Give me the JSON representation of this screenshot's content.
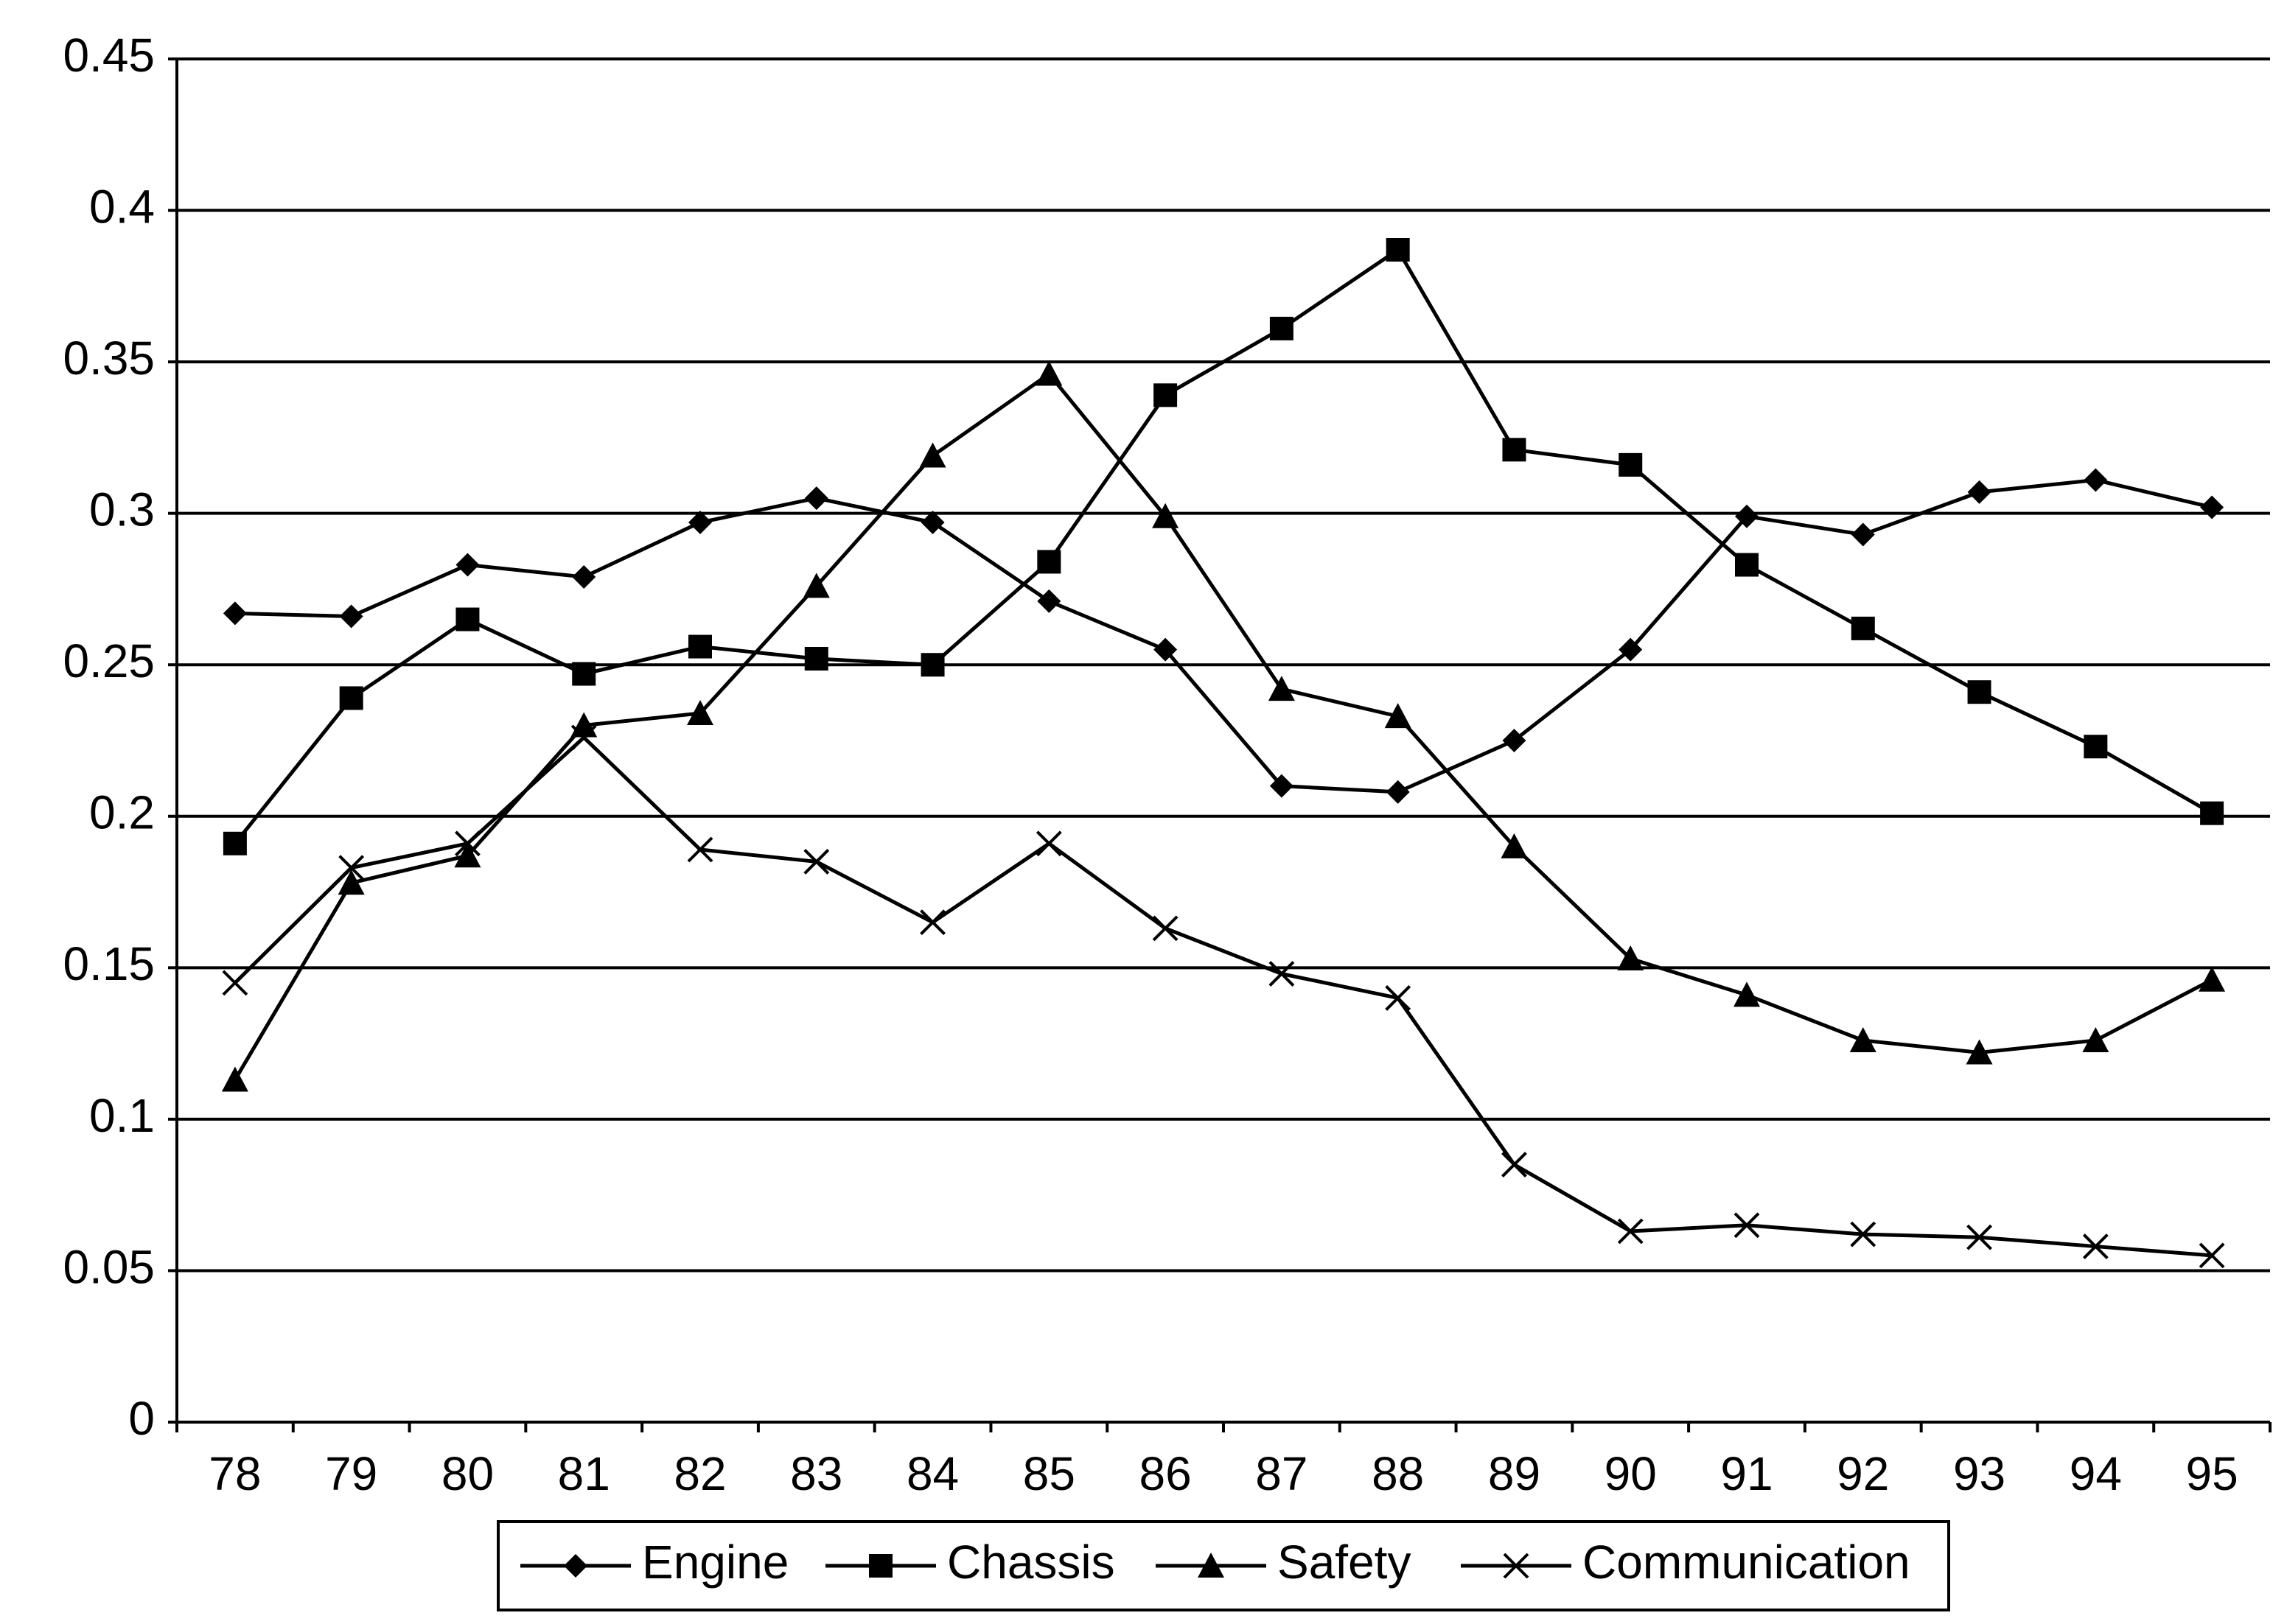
{
  "chart_data": {
    "type": "line",
    "categories": [
      "78",
      "79",
      "80",
      "81",
      "82",
      "83",
      "84",
      "85",
      "86",
      "87",
      "88",
      "89",
      "90",
      "91",
      "92",
      "93",
      "94",
      "95"
    ],
    "ylim": [
      0,
      0.45
    ],
    "yticks": [
      0,
      0.05,
      0.1,
      0.15,
      0.2,
      0.25,
      0.3,
      0.35,
      0.4,
      0.45
    ],
    "grid": true,
    "legend": "bottom",
    "series": [
      {
        "name": "Engine",
        "color": "#000000",
        "marker": "diamond",
        "values": [
          0.267,
          0.266,
          0.283,
          0.279,
          0.297,
          0.305,
          0.297,
          0.271,
          0.255,
          0.21,
          0.208,
          0.225,
          0.255,
          0.299,
          0.293,
          0.307,
          0.311,
          0.302
        ]
      },
      {
        "name": "Chassis",
        "color": "#000000",
        "marker": "square",
        "values": [
          0.191,
          0.239,
          0.265,
          0.247,
          0.256,
          0.252,
          0.25,
          0.284,
          0.339,
          0.361,
          0.387,
          0.321,
          0.316,
          0.283,
          0.262,
          0.241,
          0.223,
          0.201
        ]
      },
      {
        "name": "Safety",
        "color": "#000000",
        "marker": "triangle",
        "values": [
          0.113,
          0.178,
          0.187,
          0.23,
          0.234,
          0.276,
          0.319,
          0.346,
          0.299,
          0.242,
          0.233,
          0.19,
          0.153,
          0.141,
          0.126,
          0.122,
          0.126,
          0.146
        ]
      },
      {
        "name": "Communication",
        "color": "#000000",
        "marker": "x",
        "values": [
          0.145,
          0.183,
          0.191,
          0.226,
          0.189,
          0.185,
          0.165,
          0.191,
          0.163,
          0.148,
          0.14,
          0.085,
          0.063,
          0.065,
          0.062,
          0.061,
          0.058,
          0.055
        ]
      }
    ]
  }
}
